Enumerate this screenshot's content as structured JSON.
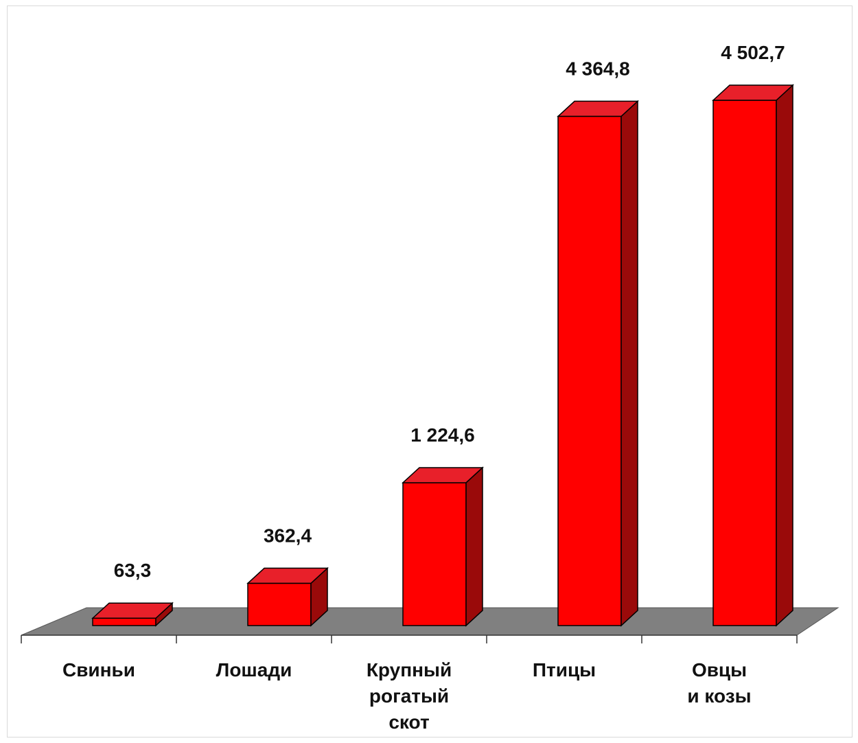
{
  "chart_data": {
    "type": "bar",
    "categories": [
      [
        "Свиньи"
      ],
      [
        "Лошади"
      ],
      [
        "Крупный",
        "рогатый",
        "скот"
      ],
      [
        "Птицы"
      ],
      [
        "Овцы",
        "и козы"
      ]
    ],
    "values": [
      63.3,
      362.4,
      1224.6,
      4364.8,
      4502.7
    ],
    "value_labels": [
      "63,3",
      "362,4",
      "1 224,6",
      "4 364,8",
      "4 502,7"
    ],
    "title": "",
    "xlabel": "",
    "ylabel": "",
    "ylim": [
      0,
      4502.7
    ],
    "grid": false,
    "legend": "none",
    "style": "3d",
    "colors": {
      "bar_front": "#ff0000",
      "bar_top": "#e8202a",
      "bar_side": "#9a0a0a",
      "floor": "#808080",
      "axis": "#333333"
    }
  }
}
